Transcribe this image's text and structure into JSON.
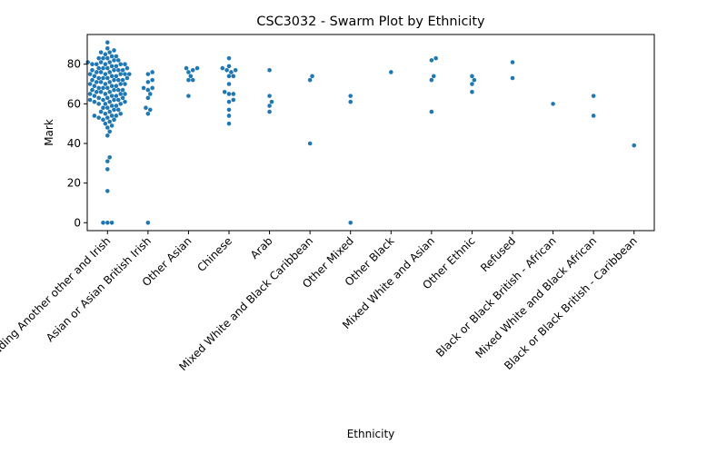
{
  "chart_data": {
    "type": "scatter",
    "subtype": "swarm",
    "title": "CSC3032 - Swarm Plot by Ethnicity",
    "xlabel": "Ethnicity",
    "ylabel": "Mark",
    "ylim": [
      -4,
      95
    ],
    "yticks": [
      0,
      20,
      40,
      60,
      80
    ],
    "grid": false,
    "color": "#1f77b4",
    "categories": [
      "White including Another other and Irish",
      "Asian or Asian British Irish",
      "Other Asian",
      "Chinese",
      "Arab",
      "Mixed White and Black Caribbean",
      "Other Mixed",
      "Other Black",
      "Mixed White and Asian",
      "Other Ethnic",
      "Refused",
      "Black or Black British - African",
      "Mixed White and Black African",
      "Black or Black British - Caribbean"
    ],
    "values": [
      [
        91,
        88,
        87,
        86,
        86,
        85,
        84,
        84,
        83,
        83,
        83,
        82,
        82,
        81,
        81,
        81,
        80,
        80,
        80,
        80,
        80,
        79,
        79,
        78,
        78,
        78,
        78,
        77,
        77,
        77,
        77,
        76,
        76,
        76,
        75,
        75,
        75,
        75,
        75,
        74,
        74,
        74,
        73,
        73,
        73,
        73,
        72,
        72,
        72,
        72,
        71,
        71,
        71,
        70,
        70,
        70,
        70,
        69,
        69,
        69,
        68,
        68,
        68,
        67,
        67,
        67,
        67,
        66,
        66,
        66,
        65,
        65,
        65,
        65,
        64,
        64,
        64,
        63,
        63,
        63,
        62,
        62,
        62,
        62,
        61,
        61,
        61,
        60,
        60,
        60,
        59,
        59,
        58,
        58,
        57,
        57,
        56,
        56,
        55,
        55,
        54,
        54,
        54,
        53,
        53,
        52,
        52,
        51,
        50,
        49,
        48,
        46,
        44,
        33,
        31,
        27,
        16,
        0,
        0,
        0
      ],
      [
        76,
        75,
        72,
        71,
        68,
        68,
        67,
        65,
        63,
        58,
        57,
        55,
        0
      ],
      [
        78,
        78,
        77,
        76,
        74,
        72,
        72,
        64
      ],
      [
        83,
        79,
        78,
        77,
        77,
        76,
        74,
        74,
        70,
        66,
        65,
        65,
        62,
        61,
        57,
        54,
        50
      ],
      [
        77,
        64,
        61,
        59,
        56
      ],
      [
        74,
        72,
        40
      ],
      [
        64,
        61,
        0
      ],
      [
        76
      ],
      [
        83,
        82,
        74,
        72,
        56
      ],
      [
        74,
        72,
        70,
        66
      ],
      [
        81,
        73
      ],
      [
        60
      ],
      [
        64,
        54
      ],
      [
        39
      ]
    ]
  }
}
